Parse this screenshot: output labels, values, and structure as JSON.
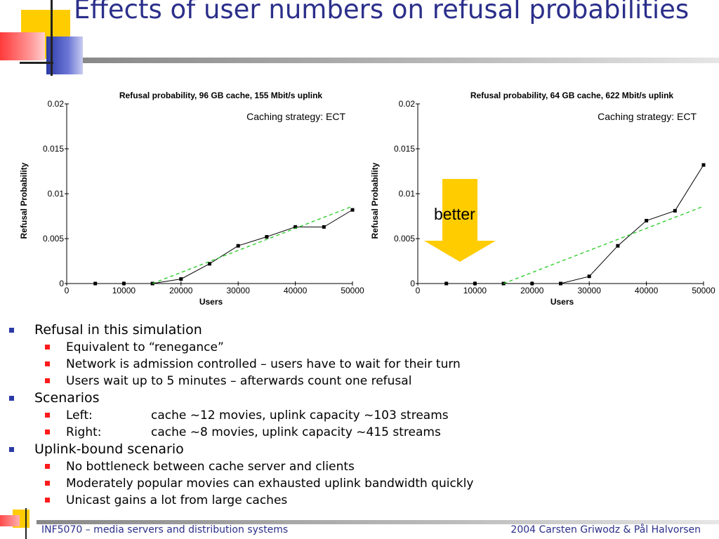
{
  "slide": {
    "title": "Effects of user numbers on refusal probabilities",
    "better_label": "better",
    "footer_left": "INF5070 – media servers and distribution systems",
    "footer_right": "2004  Carsten Griwodz & Pål Halvorsen",
    "colors": {
      "title": "#2b2f8a",
      "arrow": "#ffcc00",
      "fit_line": "#22cc22",
      "bullet_l1": "#2b3aa6",
      "bullet_l2": "#ff1a1a"
    }
  },
  "bullets": [
    {
      "text": "Refusal in this simulation",
      "children": [
        {
          "text": "Equivalent to “renegance”"
        },
        {
          "text": "Network is admission controlled – users have to wait for their turn"
        },
        {
          "text": "Users wait up to 5 minutes – afterwards count one refusal"
        }
      ]
    },
    {
      "text": "Scenarios",
      "children": [
        {
          "text": "Left:",
          "detail": "cache ~12 movies, uplink capacity ~103 streams"
        },
        {
          "text": "Right:",
          "detail": "cache ~8 movies, uplink capacity ~415 streams"
        }
      ]
    },
    {
      "text": "Uplink-bound scenario",
      "children": [
        {
          "text": "No bottleneck between cache server and clients"
        },
        {
          "text": "Moderately popular movies can exhausted uplink bandwidth quickly"
        },
        {
          "text": "Unicast gains a lot from large caches"
        }
      ]
    }
  ],
  "chart_data": [
    {
      "type": "line",
      "title": "Refusal probability, 96 GB cache, 155 Mbit/s uplink",
      "annotation": "Caching strategy: ECT",
      "xlabel": "Users",
      "ylabel": "Refusal Probability",
      "xlim": [
        0,
        50000
      ],
      "ylim": [
        0,
        0.02
      ],
      "xticks": [
        0,
        10000,
        20000,
        30000,
        40000,
        50000
      ],
      "yticks": [
        0,
        0.005,
        0.01,
        0.015,
        0.02
      ],
      "xtick_labels": [
        "0",
        "10000",
        "20000",
        "30000",
        "40000",
        "50000"
      ],
      "ytick_labels": [
        "0",
        "0.005",
        "0.01",
        "0.015",
        "0.02"
      ],
      "grid": false,
      "series": [
        {
          "style": "solid-with-square-markers",
          "color": "#000000",
          "x": [
            5000,
            10000,
            15000,
            20000,
            25000,
            30000,
            35000,
            40000,
            45000,
            50000
          ],
          "y": [
            0,
            0,
            0,
            0.0005,
            0.0022,
            0.0042,
            0.0052,
            0.0063,
            0.0063,
            0.0082
          ]
        },
        {
          "style": "dashed-fit",
          "color": "#22cc22",
          "x": [
            15000,
            50000
          ],
          "y": [
            0,
            0.0086
          ]
        }
      ]
    },
    {
      "type": "line",
      "title": "Refusal probability, 64 GB cache, 622 Mbit/s uplink",
      "annotation": "Caching strategy: ECT",
      "xlabel": "Users",
      "ylabel": "Refusal Probability",
      "xlim": [
        0,
        50000
      ],
      "ylim": [
        0,
        0.02
      ],
      "xticks": [
        0,
        10000,
        20000,
        30000,
        40000,
        50000
      ],
      "yticks": [
        0,
        0.005,
        0.01,
        0.015,
        0.02
      ],
      "xtick_labels": [
        "0",
        "10000",
        "20000",
        "30000",
        "40000",
        "50000"
      ],
      "ytick_labels": [
        "0",
        "0.005",
        "0.01",
        "0.015",
        "0.02"
      ],
      "grid": false,
      "series": [
        {
          "style": "solid-with-square-markers",
          "color": "#000000",
          "x": [
            5000,
            10000,
            15000,
            20000,
            25000,
            30000,
            35000,
            40000,
            45000,
            50000
          ],
          "y": [
            0,
            0,
            0,
            0,
            0,
            0.0008,
            0.0042,
            0.007,
            0.0081,
            0.0132
          ]
        },
        {
          "style": "dashed-fit",
          "color": "#22cc22",
          "x": [
            15000,
            50000
          ],
          "y": [
            0,
            0.0086
          ]
        }
      ]
    }
  ]
}
